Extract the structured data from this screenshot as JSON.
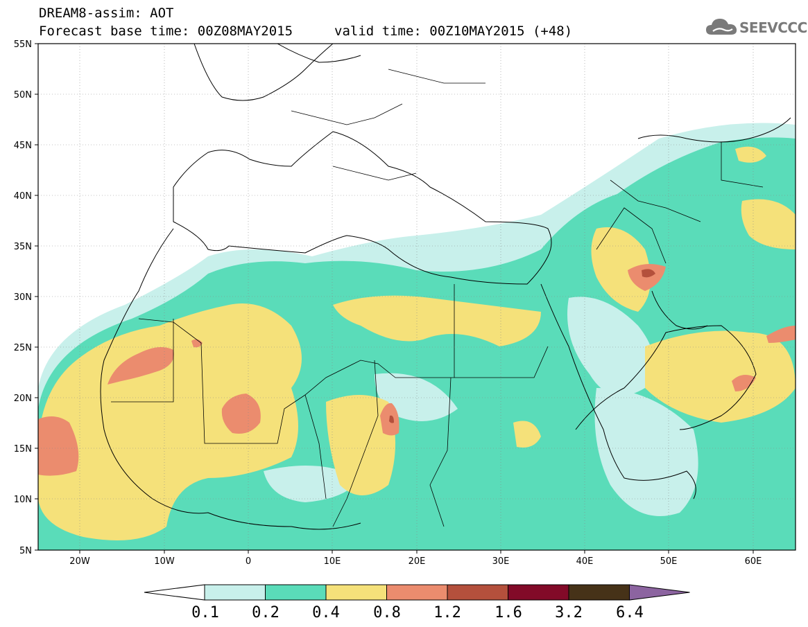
{
  "header": {
    "title_line1": "DREAM8-assim: AOT",
    "title_line2": "Forecast base time: 00Z08MAY2015",
    "title_line3": "valid time: 00Z10MAY2015 (+48)",
    "logo_text": "SEEVCCC"
  },
  "map": {
    "lat_labels": [
      "55N",
      "50N",
      "45N",
      "40N",
      "35N",
      "30N",
      "25N",
      "20N",
      "15N",
      "10N",
      "5N"
    ],
    "lon_labels": [
      "20W",
      "10W",
      "0",
      "10E",
      "20E",
      "30E",
      "40E",
      "50E",
      "60E"
    ],
    "lon_range": [
      -25,
      65
    ],
    "lat_range": [
      5,
      55
    ]
  },
  "colorbar": {
    "labels": [
      "0.1",
      "0.2",
      "0.4",
      "0.8",
      "1.2",
      "1.6",
      "3.2",
      "6.4"
    ],
    "colors": [
      "#ffffff",
      "#c8f0eb",
      "#5adcb9",
      "#f5e17a",
      "#eb8c6e",
      "#b4503c",
      "#820a28",
      "#463218",
      "#8c64a0"
    ]
  },
  "colors": {
    "white": "#ffffff",
    "very_low": "#c8f0eb",
    "low": "#5adcb9",
    "medium": "#f5e17a",
    "high": "#eb8c6e",
    "very_high": "#b4503c"
  }
}
